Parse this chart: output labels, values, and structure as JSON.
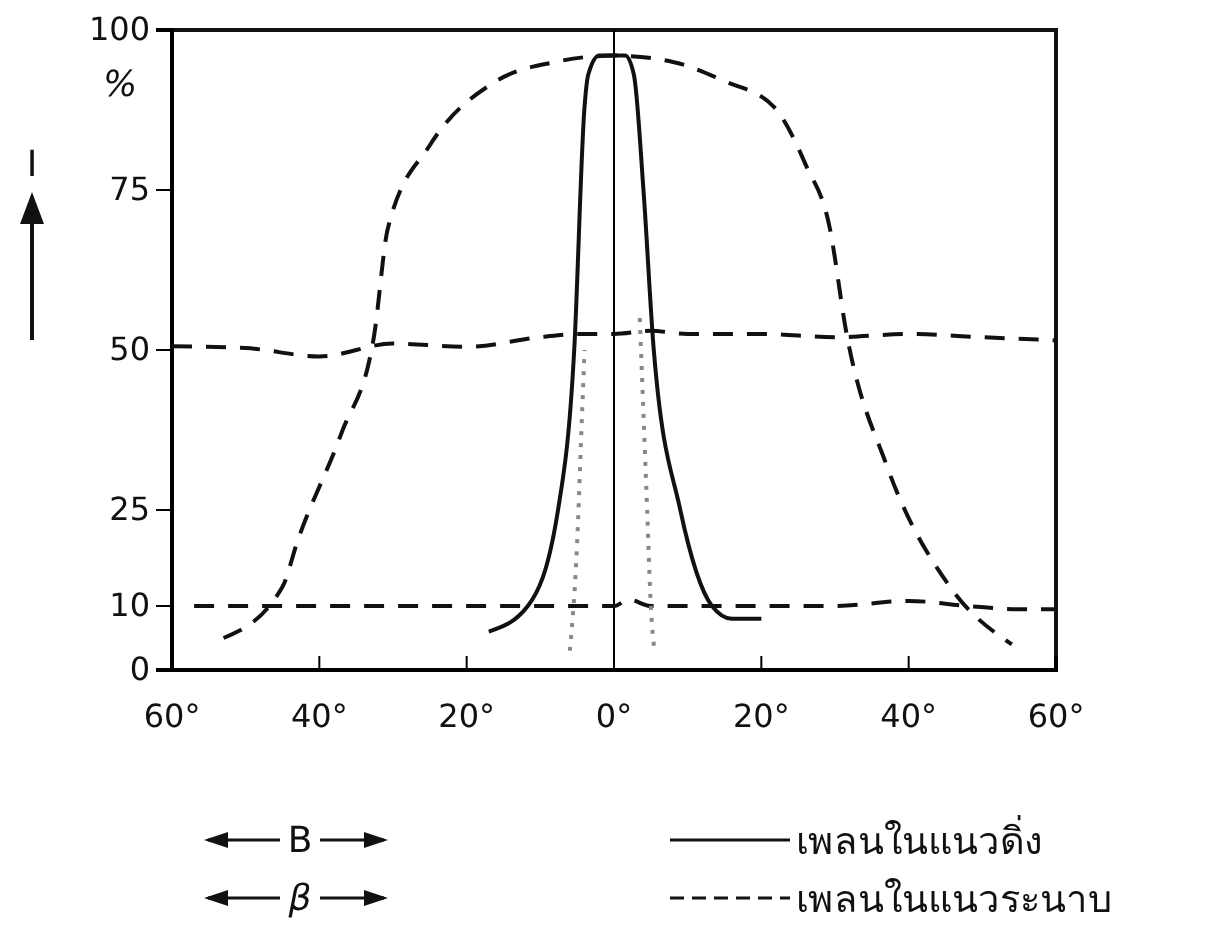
{
  "chart_data": {
    "type": "line",
    "ylabel": "I",
    "xlim": [
      -60,
      60
    ],
    "xticks": [
      {
        "value": -60,
        "label": "60°"
      },
      {
        "value": -40,
        "label": "40°"
      },
      {
        "value": -20,
        "label": "20°"
      },
      {
        "value": 0,
        "label": "0°"
      },
      {
        "value": 20,
        "label": "20°"
      },
      {
        "value": 40,
        "label": "40°"
      },
      {
        "value": 60,
        "label": "60°"
      }
    ],
    "ylim": [
      0,
      100
    ],
    "yticks": [
      0,
      10,
      25,
      50,
      75,
      100
    ],
    "grid": false,
    "legend": "bottom",
    "ref_lines": [
      {
        "axis": "x",
        "value": 0,
        "color": "#000000",
        "line_style": "solid"
      }
    ],
    "annotations": [
      "%",
      "B",
      "β"
    ],
    "series": [
      {
        "name": "เพลนในแนวดิ่ง",
        "color": "#111111",
        "line_style": "solid",
        "x": [
          -17,
          -11.7,
          -7.6,
          -5.4,
          -4,
          -3.5,
          -2,
          0,
          1.5,
          2.7,
          4,
          5.4,
          9,
          13.3,
          16,
          20
        ],
        "values": [
          6,
          10,
          25,
          50,
          88,
          93,
          96,
          96,
          96,
          93,
          75,
          50,
          25,
          10,
          8,
          8
        ]
      },
      {
        "name": "เพลนในแนวระนาบ",
        "color": "#111111",
        "line_style": "dashed",
        "x": [
          -53,
          -45,
          -43,
          -37,
          -32.6,
          -30.7,
          -25,
          -16,
          -8,
          0,
          8,
          15,
          21.7,
          26,
          29.3,
          31.5,
          37,
          45.6,
          54
        ],
        "values": [
          5,
          13,
          20,
          37,
          52,
          69,
          82,
          92,
          95,
          96,
          95,
          92,
          88,
          79,
          69,
          53,
          32,
          13,
          4
        ]
      },
      {
        "color": "#111111",
        "line_style": "dashed",
        "x": [
          -60,
          -50,
          -40,
          -30,
          -20,
          -10,
          -5,
          0,
          5,
          10,
          20,
          30,
          40,
          50,
          60
        ],
        "values": [
          50.6,
          50.3,
          49,
          51,
          50.5,
          52,
          52.5,
          52.5,
          53,
          52.5,
          52.5,
          52,
          52.5,
          52,
          51.5
        ]
      },
      {
        "color": "#111111",
        "line_style": "dashed",
        "x": [
          -57,
          -45,
          -35,
          -25,
          -15,
          -5,
          0,
          2,
          5,
          10,
          20,
          30,
          40,
          48,
          55,
          60
        ],
        "values": [
          10,
          10,
          10,
          10,
          10,
          10,
          10,
          11,
          10,
          10,
          10,
          10,
          10.8,
          10,
          9.5,
          9.5
        ]
      },
      {
        "color": "#888888",
        "line_style": "dotted",
        "x": [
          -6,
          -5,
          -4.5,
          -4
        ],
        "values": [
          3,
          20,
          35,
          50
        ]
      },
      {
        "color": "#888888",
        "line_style": "dotted",
        "x": [
          3.5,
          4,
          4.5,
          5,
          5.5
        ],
        "values": [
          55,
          40,
          25,
          10,
          3
        ]
      }
    ]
  }
}
